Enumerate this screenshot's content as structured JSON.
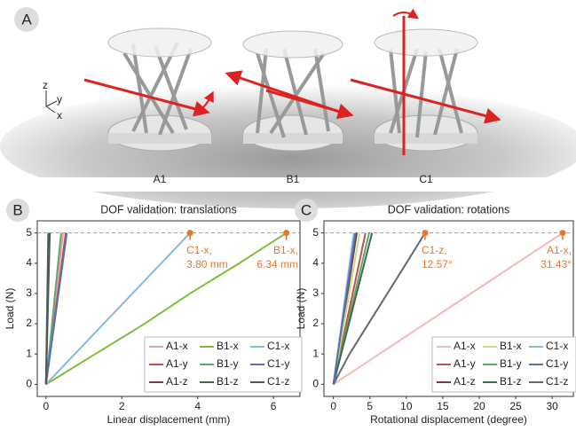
{
  "panel_a": {
    "panel_label": "A",
    "labels": [
      "A1",
      "B1",
      "C1"
    ],
    "axes": [
      "z",
      "y",
      "x"
    ]
  },
  "chart_data": [
    {
      "type": "line",
      "panel_label": "B",
      "title": "DOF validation: translations",
      "x_label": "Linear displacement (mm)",
      "y_label": "Load (N)",
      "xlim": [
        -0.23,
        6.7
      ],
      "ylim": [
        -0.4,
        5.4
      ],
      "xticks": [
        0,
        2,
        4,
        6
      ],
      "yticks": [
        0,
        1,
        2,
        3,
        4,
        5
      ],
      "hline": 5,
      "legend": "lower right",
      "series": [
        {
          "name": "A1-x",
          "color": "#f2a0a0",
          "x": [
            0,
            0.45
          ],
          "values": [
            0,
            5
          ]
        },
        {
          "name": "A1-y",
          "color": "#c0504d",
          "x": [
            0,
            0.52
          ],
          "values": [
            0,
            5
          ]
        },
        {
          "name": "A1-z",
          "color": "#7a3b3b",
          "x": [
            0,
            0.08
          ],
          "values": [
            0,
            5
          ]
        },
        {
          "name": "B1-x",
          "color": "#7cbd3c",
          "x": [
            0,
            1.3,
            2.6,
            3.8,
            5.1,
            6.34
          ],
          "values": [
            0,
            1,
            2,
            3,
            4,
            5
          ]
        },
        {
          "name": "B1-y",
          "color": "#5fa86e",
          "x": [
            0,
            0.4
          ],
          "values": [
            0,
            5
          ]
        },
        {
          "name": "B1-z",
          "color": "#3d6b4a",
          "x": [
            0,
            0.06
          ],
          "values": [
            0,
            5
          ]
        },
        {
          "name": "C1-x",
          "color": "#86b8e2",
          "x": [
            0,
            3.8
          ],
          "values": [
            0,
            5
          ]
        },
        {
          "name": "C1-y",
          "color": "#5b6fb5",
          "x": [
            0,
            0.55
          ],
          "values": [
            0,
            5
          ]
        },
        {
          "name": "C1-z",
          "color": "#555555",
          "x": [
            0,
            0.1
          ],
          "values": [
            0,
            5
          ]
        }
      ],
      "annotations": [
        {
          "x": 3.8,
          "y": 5,
          "lines": [
            "C1-x,",
            "3.80 mm"
          ]
        },
        {
          "x": 6.34,
          "y": 5,
          "lines": [
            "B1-x,",
            "6.34 mm"
          ]
        }
      ]
    },
    {
      "type": "line",
      "panel_label": "C",
      "title": "DOF validation: rotations",
      "x_label": "Rotational displacement (degree)",
      "y_label": "Load (N)",
      "xlim": [
        -1.3,
        32.9
      ],
      "ylim": [
        -0.4,
        5.4
      ],
      "xticks": [
        0,
        5,
        10,
        15,
        20,
        25,
        30
      ],
      "yticks": [
        0,
        1,
        2,
        3,
        4,
        5
      ],
      "hline": 5,
      "legend": "lower right",
      "series": [
        {
          "name": "A1-x",
          "color": "#f5b8b8",
          "x": [
            0,
            31.43
          ],
          "values": [
            0,
            5
          ]
        },
        {
          "name": "A1-y",
          "color": "#c0504d",
          "x": [
            0,
            4.4
          ],
          "values": [
            0,
            5
          ]
        },
        {
          "name": "A1-z",
          "color": "#7a3b3b",
          "x": [
            0,
            3.2
          ],
          "values": [
            0,
            5
          ]
        },
        {
          "name": "B1-x",
          "color": "#cbd98a",
          "x": [
            0,
            3.6
          ],
          "values": [
            0,
            5
          ]
        },
        {
          "name": "B1-y",
          "color": "#5fa86e",
          "x": [
            0,
            4.9
          ],
          "values": [
            0,
            5
          ]
        },
        {
          "name": "B1-z",
          "color": "#3d6b4a",
          "x": [
            0,
            5.3
          ],
          "values": [
            0,
            5
          ]
        },
        {
          "name": "C1-x",
          "color": "#86b8e2",
          "x": [
            0,
            2.8
          ],
          "values": [
            0,
            5
          ]
        },
        {
          "name": "C1-y",
          "color": "#5b6fb5",
          "x": [
            0,
            3.0
          ],
          "values": [
            0,
            5
          ]
        },
        {
          "name": "C1-z",
          "color": "#666677",
          "x": [
            0,
            2.2,
            4.8,
            7.4,
            10.0,
            12.57
          ],
          "values": [
            0,
            1,
            2,
            3,
            4,
            5
          ]
        }
      ],
      "annotations": [
        {
          "x": 12.57,
          "y": 5,
          "lines": [
            "C1-z,",
            "12.57°"
          ]
        },
        {
          "x": 31.43,
          "y": 5,
          "lines": [
            "A1-x,",
            "31.43°"
          ]
        }
      ]
    }
  ]
}
